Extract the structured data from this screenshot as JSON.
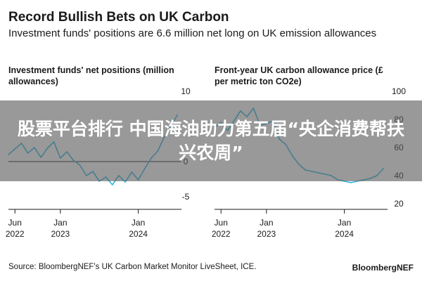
{
  "title": "Record Bullish Bets on UK Carbon",
  "subtitle": "Investment funds' positions are 6.6 million net long on UK emission allowances",
  "source": "Source: BloombergNEF's UK Carbon Market Monitor LiveSheet, ICE.",
  "brand": "BloombergNEF",
  "overlay_text": "股票平台排行 中国海油助力第五届“央企消费帮扶兴农周”",
  "colors": {
    "series": "#2bb5e0",
    "zero_line": "#1a1a1a",
    "axis": "#1a1a1a"
  },
  "chart_data": [
    {
      "type": "line",
      "title": "Investment funds' net positions (million allowances)",
      "y_ticks": [
        10,
        0,
        -5
      ],
      "ylim": [
        -6,
        10
      ],
      "x_ticks": [
        {
          "date": "2022-06",
          "label": [
            "Jun",
            "2022"
          ]
        },
        {
          "date": "2023-01",
          "label": [
            "Jan",
            "2023"
          ]
        },
        {
          "date": "2024-01",
          "label": [
            "Jan",
            "2024"
          ]
        }
      ],
      "zero_line": true,
      "series": [
        {
          "values": [
            [
              "2022-05",
              1.0
            ],
            [
              "2022-06",
              1.8
            ],
            [
              "2022-07",
              2.6
            ],
            [
              "2022-08",
              1.2
            ],
            [
              "2022-09",
              2.0
            ],
            [
              "2022-10",
              0.6
            ],
            [
              "2022-11",
              1.9
            ],
            [
              "2022-12",
              2.8
            ],
            [
              "2023-01",
              0.5
            ],
            [
              "2023-02",
              1.4
            ],
            [
              "2023-03",
              0.2
            ],
            [
              "2023-04",
              -0.5
            ],
            [
              "2023-05",
              -2.0
            ],
            [
              "2023-06",
              -1.4
            ],
            [
              "2023-07",
              -2.8
            ],
            [
              "2023-08",
              -2.2
            ],
            [
              "2023-09",
              -3.3
            ],
            [
              "2023-10",
              -2.0
            ],
            [
              "2023-11",
              -2.9
            ],
            [
              "2023-12",
              -1.5
            ],
            [
              "2024-01",
              -2.6
            ],
            [
              "2024-02",
              -1.0
            ],
            [
              "2024-03",
              0.5
            ],
            [
              "2024-04",
              1.5
            ],
            [
              "2024-05",
              3.5
            ],
            [
              "2024-06",
              5.0
            ],
            [
              "2024-07",
              6.6
            ]
          ]
        }
      ]
    },
    {
      "type": "line",
      "title": "Front-year UK carbon allowance price (£ per metric ton CO2e)",
      "y_ticks": [
        100,
        80,
        60,
        40,
        20
      ],
      "ylim": [
        20,
        100
      ],
      "x_ticks": [
        {
          "date": "2022-06",
          "label": [
            "Jun",
            "2022"
          ]
        },
        {
          "date": "2023-01",
          "label": [
            "Jan",
            "2023"
          ]
        },
        {
          "date": "2024-01",
          "label": [
            "Jan",
            "2024"
          ]
        }
      ],
      "zero_line": false,
      "series": [
        {
          "values": [
            [
              "2022-05",
              74
            ],
            [
              "2022-06",
              78
            ],
            [
              "2022-07",
              72
            ],
            [
              "2022-08",
              79
            ],
            [
              "2022-09",
              86
            ],
            [
              "2022-10",
              82
            ],
            [
              "2022-11",
              88
            ],
            [
              "2022-12",
              76
            ],
            [
              "2023-01",
              77
            ],
            [
              "2023-02",
              79
            ],
            [
              "2023-03",
              66
            ],
            [
              "2023-04",
              62
            ],
            [
              "2023-05",
              54
            ],
            [
              "2023-06",
              48
            ],
            [
              "2023-07",
              44
            ],
            [
              "2023-08",
              43
            ],
            [
              "2023-09",
              42
            ],
            [
              "2023-10",
              41
            ],
            [
              "2023-11",
              40
            ],
            [
              "2023-12",
              37
            ],
            [
              "2024-01",
              36
            ],
            [
              "2024-02",
              35
            ],
            [
              "2024-03",
              36
            ],
            [
              "2024-04",
              37
            ],
            [
              "2024-05",
              38
            ],
            [
              "2024-06",
              40
            ],
            [
              "2024-07",
              45
            ]
          ]
        }
      ]
    }
  ]
}
